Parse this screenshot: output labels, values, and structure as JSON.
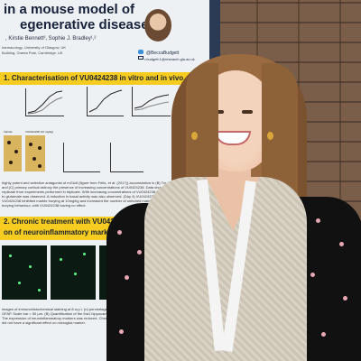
{
  "poster": {
    "title_line1": "in a mouse model of",
    "title_line2": "egenerative disease",
    "authors": ", Kirstie Bennett², Sophie J. Bradley¹,²",
    "affiliation1": "harmacology, University of Glasgow, UK",
    "affiliation2": "Building, Granta Park, Cambridge, UK",
    "twitter_handle": "@BeccaBudgett",
    "email": "r.budgett.1@research.gla.ac.uk",
    "section1_heading": "1. Characterisation of VU0424238 in vitro and in vivo.",
    "section1_text": "highly potent and selective antagonist of mGlu5 (figure from Felts, et al. (2017)) accumulation in (B) Trx-M™ mGlu5 cells (n=3) and (C) primary cortical astrocy the presence of increasing concentrations of VU0424238. Data shown are mean ± SEM of replicate from experiments performed in triplicate. With increasing concentrations of VU0424238 treatment, percentage of cells to glutamate was observed. A reduction in basal activity was also observed. (Day 4) VU0424238 (20 mg/kg, 10 mg/kg), (D) VU0424238 inhibited marble burying at 10mg/kg and increased the number of unburied marbles indicating inhibited marble burying behaviour, with VU0424238 having no effect.",
    "section2_heading": "2. Chronic treatment with VU0424238 modulate",
    "section2_subheading": "on of neuroinflammatory markers in murine prio",
    "lower_text": "images of immunohistochemical staining at 8 w.p.i. (n) percentage of prion-diseased mice after staining for the m cell marker GFAP. Scale bar = 50 µm. (B) Quantification of the Iba1 hippocampus. Two way ANOVA with Sidak's post hoc test; * p < 0.05. The expression of neuroinflammatory markers was reduced. Chronic treatment with VU0424238 appeared to reduce 8 w.p.i., but did not have a significant effect on microglial marker.",
    "cell_labels": [
      "Vehicle",
      "VU0424238 (10 mg/kg)"
    ]
  },
  "colors": {
    "poster_bg": "#eef1f4",
    "section_header_yellow": "#f5cc1f",
    "title_navy": "#17213a",
    "board_frame": "#2b3a55",
    "brick_wall": "#7a5e4a"
  },
  "icons": [
    "twitter-icon",
    "mail-icon"
  ]
}
